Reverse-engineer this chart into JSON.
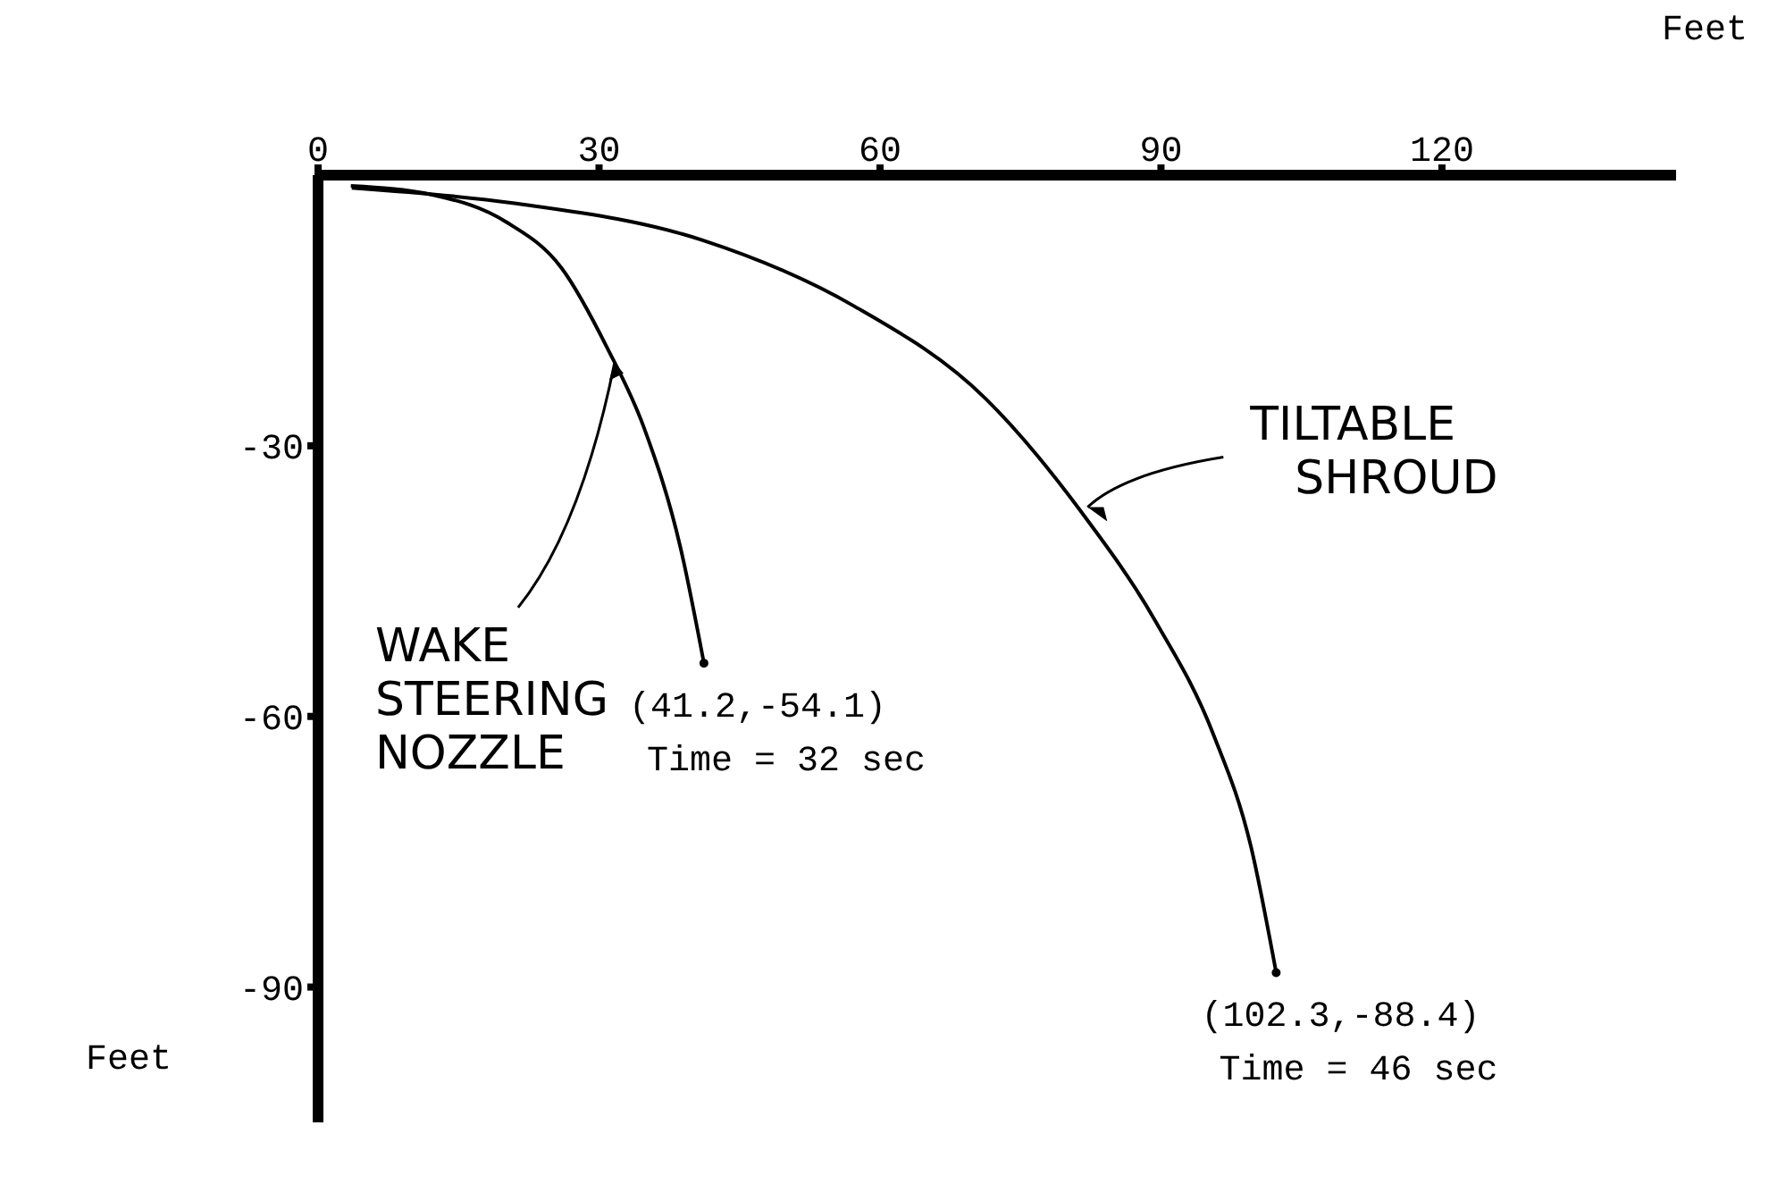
{
  "chart_data": {
    "type": "line",
    "xlabel": "Feet",
    "ylabel": "Feet",
    "xlim": [
      0,
      145
    ],
    "ylim": [
      -105,
      0
    ],
    "xticks": [
      0,
      30,
      60,
      90,
      120
    ],
    "yticks": [
      -30,
      -60,
      -90
    ],
    "marker": "none",
    "series": [
      {
        "name": "WAKE STEERING NOZZLE",
        "color": "#000000",
        "x": [
          3.5,
          12.3,
          20.1,
          26,
          30.9,
          34.8,
          38.7,
          41.2
        ],
        "values": [
          -1.2,
          -2.2,
          -5.2,
          -10.3,
          -19.2,
          -28,
          -41.3,
          -54.1
        ]
      },
      {
        "name": "TILTABLE SHROUD",
        "color": "#000000",
        "x": [
          3.6,
          20.8,
          41,
          57.2,
          71.3,
          81.4,
          89.5,
          95.6,
          99.6,
          102.3
        ],
        "values": [
          -1.4,
          -3.1,
          -7.2,
          -14.5,
          -24.8,
          -37.2,
          -49.6,
          -62,
          -74.4,
          -88.4
        ]
      }
    ],
    "annotations": [
      {
        "text": "(41.2,-54.1)\nTime = 32 sec",
        "x": 41.2,
        "y": -54.1
      },
      {
        "text": "(102.3,-88.4)\nTime = 46 sec",
        "x": 102.3,
        "y": -88.4
      }
    ]
  }
}
